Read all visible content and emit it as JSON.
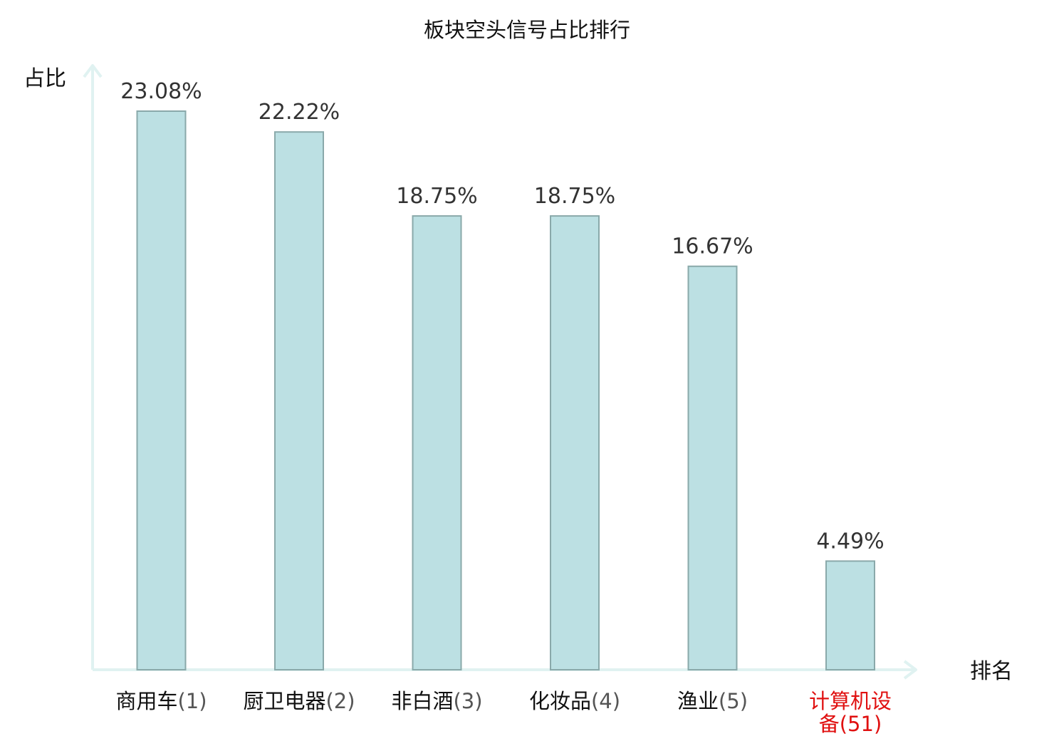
{
  "chart_data": {
    "type": "bar",
    "title": "板块空头信号占比排行",
    "ylabel": "占比",
    "xlabel": "排名",
    "ylim": [
      0,
      25
    ],
    "categories": [
      {
        "name": "商用车",
        "rank": "(1)"
      },
      {
        "name": "厨卫电器",
        "rank": "(2)"
      },
      {
        "name": "非白酒",
        "rank": "(3)"
      },
      {
        "name": "化妆品",
        "rank": "(4)"
      },
      {
        "name": "渔业",
        "rank": "(5)"
      },
      {
        "name": "计算机设备",
        "rank": "(51)"
      }
    ],
    "values": [
      23.08,
      22.22,
      18.75,
      18.75,
      16.67,
      4.49
    ],
    "value_labels": [
      "23.08%",
      "22.22%",
      "18.75%",
      "18.75%",
      "16.67%",
      "4.49%"
    ],
    "highlight_index": 5,
    "colors": {
      "bar_fill": "#bce0e3",
      "bar_stroke": "#8aa9aa",
      "axis": "#e0f2f1",
      "highlight_text": "#e01010"
    }
  }
}
